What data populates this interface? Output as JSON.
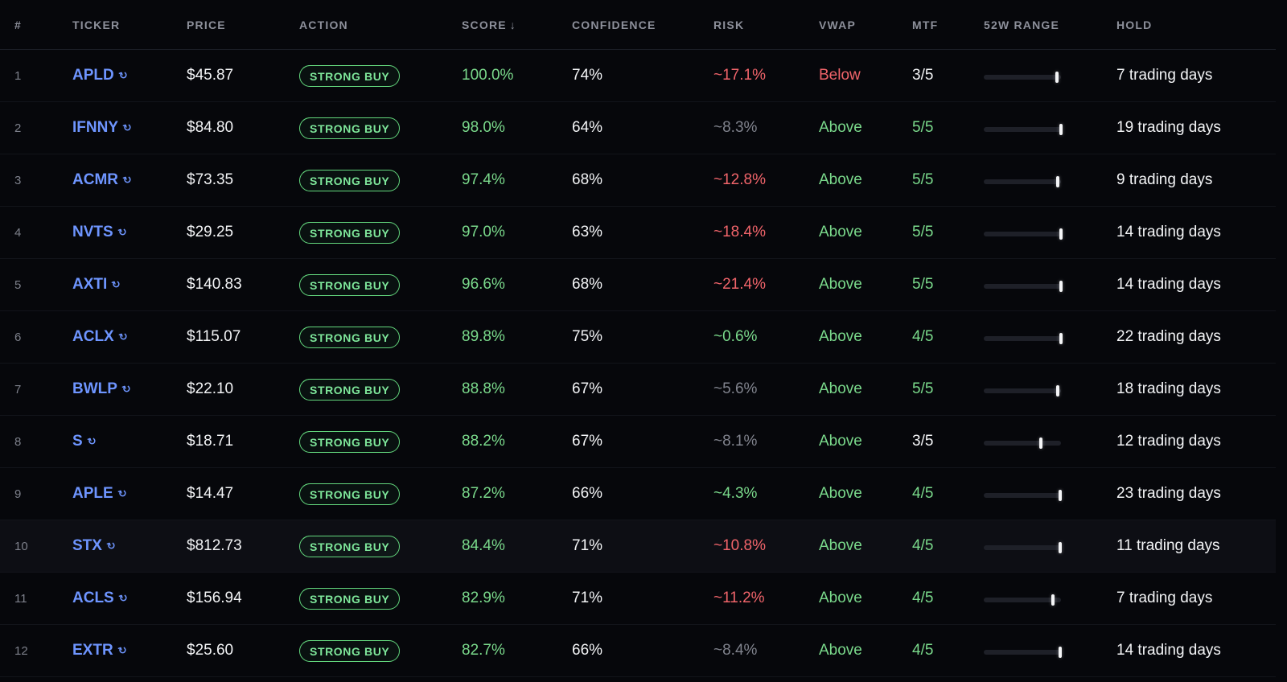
{
  "headers": {
    "num": "#",
    "ticker": "TICKER",
    "price": "PRICE",
    "action": "ACTION",
    "score": "SCORE",
    "score_sort": "↓",
    "confidence": "CONFIDENCE",
    "risk": "RISK",
    "vwap": "VWAP",
    "mtf": "MTF",
    "range": "52W RANGE",
    "hold": "HOLD"
  },
  "icons": {
    "ticker_link": "external-link-icon"
  },
  "colors": {
    "green": "#7ad98b",
    "red": "#f0646a",
    "gray": "#80838d",
    "white": "#f3f4f6",
    "ticker": "#6e95ff"
  },
  "rows": [
    {
      "num": "1",
      "ticker": "APLD",
      "price": "$45.87",
      "action": "STRONG BUY",
      "score": "100.0%",
      "confidence": "74%",
      "risk": "~17.1%",
      "risk_tone": "red",
      "vwap": "Below",
      "vwap_tone": "red",
      "mtf": "3/5",
      "mtf_tone": "white",
      "range_pos": 0.95,
      "hold": "7 trading days"
    },
    {
      "num": "2",
      "ticker": "IFNNY",
      "price": "$84.80",
      "action": "STRONG BUY",
      "score": "98.0%",
      "confidence": "64%",
      "risk": "~8.3%",
      "risk_tone": "gray",
      "vwap": "Above",
      "vwap_tone": "green",
      "mtf": "5/5",
      "mtf_tone": "green",
      "range_pos": 1.0,
      "hold": "19 trading days"
    },
    {
      "num": "3",
      "ticker": "ACMR",
      "price": "$73.35",
      "action": "STRONG BUY",
      "score": "97.4%",
      "confidence": "68%",
      "risk": "~12.8%",
      "risk_tone": "red",
      "vwap": "Above",
      "vwap_tone": "green",
      "mtf": "5/5",
      "mtf_tone": "green",
      "range_pos": 0.96,
      "hold": "9 trading days"
    },
    {
      "num": "4",
      "ticker": "NVTS",
      "price": "$29.25",
      "action": "STRONG BUY",
      "score": "97.0%",
      "confidence": "63%",
      "risk": "~18.4%",
      "risk_tone": "red",
      "vwap": "Above",
      "vwap_tone": "green",
      "mtf": "5/5",
      "mtf_tone": "green",
      "range_pos": 1.0,
      "hold": "14 trading days"
    },
    {
      "num": "5",
      "ticker": "AXTI",
      "price": "$140.83",
      "action": "STRONG BUY",
      "score": "96.6%",
      "confidence": "68%",
      "risk": "~21.4%",
      "risk_tone": "red",
      "vwap": "Above",
      "vwap_tone": "green",
      "mtf": "5/5",
      "mtf_tone": "green",
      "range_pos": 1.0,
      "hold": "14 trading days"
    },
    {
      "num": "6",
      "ticker": "ACLX",
      "price": "$115.07",
      "action": "STRONG BUY",
      "score": "89.8%",
      "confidence": "75%",
      "risk": "~0.6%",
      "risk_tone": "green",
      "vwap": "Above",
      "vwap_tone": "green",
      "mtf": "4/5",
      "mtf_tone": "green",
      "range_pos": 1.0,
      "hold": "22 trading days"
    },
    {
      "num": "7",
      "ticker": "BWLP",
      "price": "$22.10",
      "action": "STRONG BUY",
      "score": "88.8%",
      "confidence": "67%",
      "risk": "~5.6%",
      "risk_tone": "gray",
      "vwap": "Above",
      "vwap_tone": "green",
      "mtf": "5/5",
      "mtf_tone": "green",
      "range_pos": 0.96,
      "hold": "18 trading days"
    },
    {
      "num": "8",
      "ticker": "S",
      "price": "$18.71",
      "action": "STRONG BUY",
      "score": "88.2%",
      "confidence": "67%",
      "risk": "~8.1%",
      "risk_tone": "gray",
      "vwap": "Above",
      "vwap_tone": "green",
      "mtf": "3/5",
      "mtf_tone": "white",
      "range_pos": 0.74,
      "hold": "12 trading days"
    },
    {
      "num": "9",
      "ticker": "APLE",
      "price": "$14.47",
      "action": "STRONG BUY",
      "score": "87.2%",
      "confidence": "66%",
      "risk": "~4.3%",
      "risk_tone": "green",
      "vwap": "Above",
      "vwap_tone": "green",
      "mtf": "4/5",
      "mtf_tone": "green",
      "range_pos": 0.99,
      "hold": "23 trading days"
    },
    {
      "num": "10",
      "ticker": "STX",
      "price": "$812.73",
      "action": "STRONG BUY",
      "score": "84.4%",
      "confidence": "71%",
      "risk": "~10.8%",
      "risk_tone": "red",
      "vwap": "Above",
      "vwap_tone": "green",
      "mtf": "4/5",
      "mtf_tone": "green",
      "range_pos": 0.99,
      "hold": "11 trading days",
      "highlight": true
    },
    {
      "num": "11",
      "ticker": "ACLS",
      "price": "$156.94",
      "action": "STRONG BUY",
      "score": "82.9%",
      "confidence": "71%",
      "risk": "~11.2%",
      "risk_tone": "red",
      "vwap": "Above",
      "vwap_tone": "green",
      "mtf": "4/5",
      "mtf_tone": "green",
      "range_pos": 0.9,
      "hold": "7 trading days"
    },
    {
      "num": "12",
      "ticker": "EXTR",
      "price": "$25.60",
      "action": "STRONG BUY",
      "score": "82.7%",
      "confidence": "66%",
      "risk": "~8.4%",
      "risk_tone": "gray",
      "vwap": "Above",
      "vwap_tone": "green",
      "mtf": "4/5",
      "mtf_tone": "green",
      "range_pos": 0.99,
      "hold": "14 trading days"
    }
  ]
}
